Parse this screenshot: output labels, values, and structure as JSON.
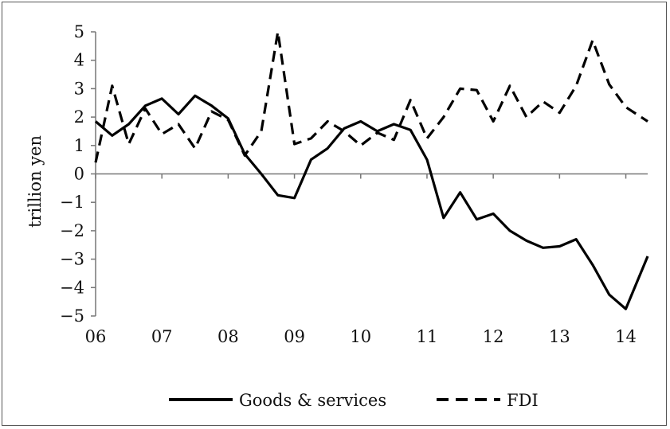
{
  "chart_data": {
    "type": "line",
    "title": "",
    "xlabel": "",
    "ylabel": "trillion yen",
    "xlim": [
      2006,
      2014.33
    ],
    "ylim": [
      -5,
      5
    ],
    "x_ticks": [
      {
        "value": 2006,
        "label": "06"
      },
      {
        "value": 2007,
        "label": "07"
      },
      {
        "value": 2008,
        "label": "08"
      },
      {
        "value": 2009,
        "label": "09"
      },
      {
        "value": 2010,
        "label": "10"
      },
      {
        "value": 2011,
        "label": "11"
      },
      {
        "value": 2012,
        "label": "12"
      },
      {
        "value": 2013,
        "label": "13"
      },
      {
        "value": 2014,
        "label": "14"
      }
    ],
    "y_ticks": [
      5,
      4,
      3,
      2,
      1,
      0,
      -1,
      -2,
      -3,
      -4,
      -5
    ],
    "y_tick_labels": [
      "5",
      "4",
      "3",
      "2",
      "1",
      "0",
      "−1",
      "−2",
      "−3",
      "−4",
      "−5"
    ],
    "grid": false,
    "legend_position": "bottom",
    "series": [
      {
        "name": "Goods & services",
        "style": "solid",
        "color": "#000000",
        "x": [
          2006.0,
          2006.25,
          2006.5,
          2006.75,
          2007.0,
          2007.25,
          2007.5,
          2007.75,
          2008.0,
          2008.25,
          2008.5,
          2008.75,
          2009.0,
          2009.25,
          2009.5,
          2009.75,
          2010.0,
          2010.25,
          2010.5,
          2010.75,
          2011.0,
          2011.25,
          2011.5,
          2011.75,
          2012.0,
          2012.25,
          2012.5,
          2012.75,
          2013.0,
          2013.25,
          2013.5,
          2013.75,
          2014.0,
          2014.33
        ],
        "y": [
          1.85,
          1.35,
          1.75,
          2.4,
          2.65,
          2.1,
          2.75,
          2.4,
          1.95,
          0.7,
          0.0,
          -0.75,
          -0.85,
          0.5,
          0.9,
          1.6,
          1.85,
          1.5,
          1.75,
          1.55,
          0.5,
          -1.55,
          -0.65,
          -1.6,
          -1.4,
          -2.0,
          -2.35,
          -2.6,
          -2.55,
          -2.3,
          -3.2,
          -4.25,
          -4.75,
          -2.9
        ]
      },
      {
        "name": "FDI",
        "style": "dashed",
        "color": "#000000",
        "x": [
          2006.0,
          2006.25,
          2006.5,
          2006.75,
          2007.0,
          2007.25,
          2007.5,
          2007.75,
          2008.0,
          2008.25,
          2008.5,
          2008.75,
          2009.0,
          2009.25,
          2009.5,
          2009.75,
          2010.0,
          2010.25,
          2010.5,
          2010.75,
          2011.0,
          2011.25,
          2011.5,
          2011.75,
          2012.0,
          2012.25,
          2012.5,
          2012.75,
          2013.0,
          2013.25,
          2013.5,
          2013.75,
          2014.0,
          2014.33
        ],
        "y": [
          0.4,
          3.1,
          1.05,
          2.3,
          1.4,
          1.75,
          0.9,
          2.2,
          1.9,
          0.65,
          1.5,
          5.0,
          1.05,
          1.25,
          1.85,
          1.5,
          1.0,
          1.45,
          1.2,
          2.6,
          1.25,
          2.0,
          3.0,
          2.95,
          1.85,
          3.1,
          2.0,
          2.55,
          2.15,
          3.1,
          4.7,
          3.15,
          2.35,
          1.85
        ]
      }
    ]
  }
}
